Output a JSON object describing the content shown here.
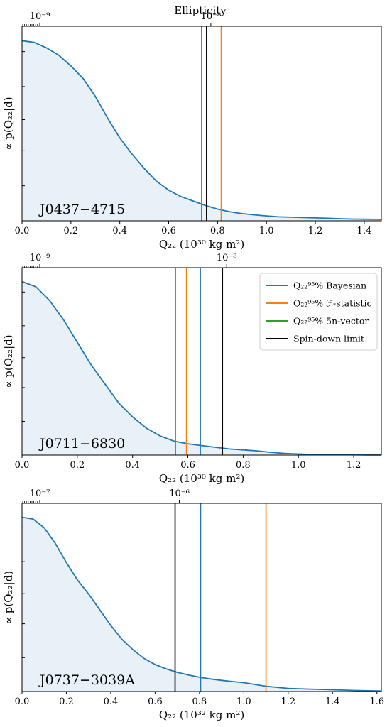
{
  "figure": {
    "title": "Ellipticity",
    "legend": [
      {
        "label": "Q₂₂⁹⁵% Bayesian",
        "color": "#1f77b4"
      },
      {
        "label": "Q₂₂⁹⁵% ℱ-statistic",
        "color": "#ff7f0e"
      },
      {
        "label": "Q₂₂⁹⁵% 5n-vector",
        "color": "#2ca02c"
      },
      {
        "label": "Spin-down limit",
        "color": "#000000"
      }
    ]
  },
  "chart_data": [
    {
      "type": "area",
      "pulsar": "J0437−4715",
      "xlabel": "Q₂₂ (10³⁰ kg m²)",
      "ylabel": "∝ p(Q₂₂|d)",
      "top_axis_label": "Ellipticity",
      "top_ticks": [
        "10⁻⁹",
        "10⁻⁸"
      ],
      "xlim": [
        0,
        1.47
      ],
      "xticks": [
        "0.0",
        "0.2",
        "0.4",
        "0.6",
        "0.8",
        "1.0",
        "1.2",
        "1.4"
      ],
      "x": [
        0.0,
        0.05,
        0.1,
        0.15,
        0.2,
        0.25,
        0.3,
        0.35,
        0.4,
        0.45,
        0.5,
        0.55,
        0.6,
        0.65,
        0.7,
        0.75,
        0.8,
        0.85,
        0.9,
        0.95,
        1.0,
        1.05,
        1.1,
        1.15,
        1.2,
        1.25,
        1.3,
        1.35,
        1.4,
        1.47
      ],
      "y": [
        1.0,
        0.99,
        0.96,
        0.92,
        0.86,
        0.79,
        0.69,
        0.57,
        0.46,
        0.37,
        0.29,
        0.22,
        0.17,
        0.135,
        0.11,
        0.085,
        0.065,
        0.05,
        0.04,
        0.033,
        0.027,
        0.022,
        0.02,
        0.018,
        0.016,
        0.014,
        0.012,
        0.01,
        0.009,
        0.008
      ],
      "vlines": [
        {
          "name": "Bayesian",
          "x": 0.735,
          "color": "#1f77b4"
        },
        {
          "name": "Spin-down limit",
          "x": 0.755,
          "color": "#000000"
        },
        {
          "name": "F-statistic",
          "x": 0.815,
          "color": "#ff7f0e"
        }
      ],
      "ylim": [
        0,
        1.08
      ]
    },
    {
      "type": "area",
      "pulsar": "J0711−6830",
      "xlabel": "Q₂₂ (10³⁰ kg m²)",
      "ylabel": "∝ p(Q₂₂|d)",
      "top_ticks": [
        "10⁻⁹",
        "10⁻⁸"
      ],
      "xlim": [
        0,
        1.3
      ],
      "xticks": [
        "0.0",
        "0.2",
        "0.4",
        "0.6",
        "0.8",
        "1.0",
        "1.2"
      ],
      "x": [
        0.0,
        0.05,
        0.1,
        0.15,
        0.2,
        0.25,
        0.3,
        0.35,
        0.4,
        0.45,
        0.5,
        0.55,
        0.6,
        0.65,
        0.7,
        0.75,
        0.8,
        0.85,
        0.9,
        0.95,
        1.0,
        1.05,
        1.1,
        1.15,
        1.2,
        1.25,
        1.3
      ],
      "y": [
        1.0,
        0.97,
        0.89,
        0.78,
        0.65,
        0.52,
        0.41,
        0.3,
        0.22,
        0.155,
        0.11,
        0.08,
        0.065,
        0.055,
        0.045,
        0.035,
        0.03,
        0.024,
        0.016,
        0.01,
        0.006,
        0.004,
        0.003,
        0.002,
        0.0015,
        0.001,
        0.001
      ],
      "vlines": [
        {
          "name": "5n-vector",
          "x": 0.555,
          "color": "#2ca02c"
        },
        {
          "name": "F-statistic",
          "x": 0.595,
          "color": "#ff7f0e"
        },
        {
          "name": "Bayesian",
          "x": 0.645,
          "color": "#1f77b4"
        },
        {
          "name": "Spin-down limit",
          "x": 0.725,
          "color": "#000000"
        }
      ],
      "ylim": [
        0,
        1.08
      ]
    },
    {
      "type": "area",
      "pulsar": "J0737−3039A",
      "xlabel": "Q₂₂ (10³² kg m²)",
      "ylabel": "∝ p(Q₂₂|d)",
      "top_ticks": [
        "10⁻⁷",
        "10⁻⁶"
      ],
      "xlim": [
        0,
        1.62
      ],
      "xticks": [
        "0.0",
        "0.2",
        "0.4",
        "0.6",
        "0.8",
        "1.0",
        "1.2",
        "1.4",
        "1.6"
      ],
      "x": [
        0.0,
        0.05,
        0.1,
        0.15,
        0.2,
        0.25,
        0.3,
        0.35,
        0.4,
        0.45,
        0.5,
        0.55,
        0.6,
        0.65,
        0.7,
        0.75,
        0.8,
        0.85,
        0.9,
        0.95,
        1.0,
        1.1,
        1.2,
        1.3,
        1.4,
        1.5,
        1.62
      ],
      "y": [
        1.0,
        0.99,
        0.94,
        0.85,
        0.74,
        0.64,
        0.56,
        0.47,
        0.38,
        0.3,
        0.24,
        0.19,
        0.155,
        0.13,
        0.11,
        0.095,
        0.082,
        0.072,
        0.064,
        0.057,
        0.051,
        0.03,
        0.018,
        0.014,
        0.01,
        0.006,
        0.003
      ],
      "vlines": [
        {
          "name": "Spin-down limit",
          "x": 0.69,
          "color": "#000000"
        },
        {
          "name": "Bayesian",
          "x": 0.805,
          "color": "#1f77b4"
        },
        {
          "name": "F-statistic",
          "x": 1.1,
          "color": "#ff7f0e"
        }
      ],
      "ylim": [
        0,
        1.08
      ]
    }
  ]
}
